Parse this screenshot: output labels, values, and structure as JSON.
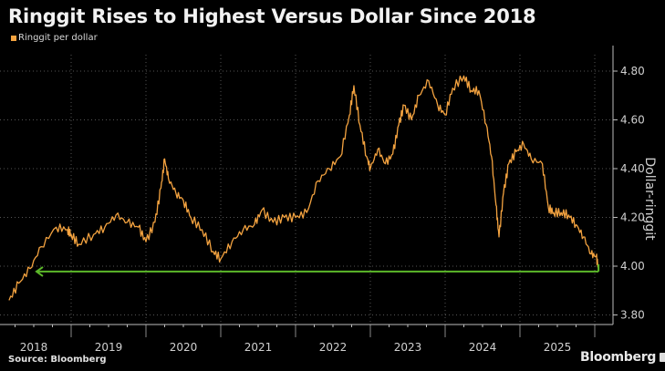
{
  "chart_data": {
    "type": "line",
    "title": "Ringgit Rises to Highest Versus Dollar Since 2018",
    "legend": [
      "Ringgit per dollar"
    ],
    "legend_placement": "top-left",
    "ylabel": "Dollar-ringgit",
    "xlabel": "",
    "ylim": [
      3.76,
      4.88
    ],
    "yticks": [
      "4.80",
      "4.60",
      "4.40",
      "4.20",
      "4.00",
      "3.80"
    ],
    "ytick_values": [
      4.8,
      4.6,
      4.4,
      4.2,
      4.0,
      3.8
    ],
    "xticks": [
      "2018",
      "2019",
      "2020",
      "2021",
      "2022",
      "2023",
      "2024",
      "2025"
    ],
    "grid": true,
    "series": [
      {
        "name": "Ringgit per dollar",
        "color": "#f4a340",
        "x": [
          2018.17,
          2018.3,
          2018.45,
          2018.6,
          2018.8,
          2018.95,
          2019.0,
          2019.1,
          2019.3,
          2019.45,
          2019.6,
          2019.75,
          2019.9,
          2020.0,
          2020.12,
          2020.2,
          2020.25,
          2020.3,
          2020.4,
          2020.5,
          2020.6,
          2020.75,
          2020.9,
          2021.0,
          2021.15,
          2021.3,
          2021.45,
          2021.55,
          2021.7,
          2021.85,
          2022.0,
          2022.15,
          2022.3,
          2022.45,
          2022.6,
          2022.72,
          2022.78,
          2022.86,
          2022.95,
          2023.0,
          2023.1,
          2023.2,
          2023.3,
          2023.38,
          2023.45,
          2023.55,
          2023.65,
          2023.78,
          2023.9,
          2024.0,
          2024.1,
          2024.25,
          2024.35,
          2024.45,
          2024.55,
          2024.62,
          2024.68,
          2024.72,
          2024.78,
          2024.85,
          2024.95,
          2025.05,
          2025.15,
          2025.3,
          2025.38,
          2025.45,
          2025.55,
          2025.65,
          2025.75,
          2025.85,
          2025.95,
          2026.02,
          2026.05
        ],
        "values": [
          3.86,
          3.93,
          3.99,
          4.08,
          4.16,
          4.15,
          4.13,
          4.09,
          4.13,
          4.16,
          4.21,
          4.18,
          4.16,
          4.1,
          4.18,
          4.32,
          4.44,
          4.36,
          4.3,
          4.27,
          4.2,
          4.15,
          4.06,
          4.03,
          4.1,
          4.15,
          4.17,
          4.23,
          4.18,
          4.2,
          4.2,
          4.22,
          4.35,
          4.4,
          4.45,
          4.62,
          4.74,
          4.58,
          4.45,
          4.4,
          4.48,
          4.42,
          4.46,
          4.58,
          4.66,
          4.6,
          4.7,
          4.76,
          4.66,
          4.62,
          4.73,
          4.78,
          4.72,
          4.72,
          4.58,
          4.45,
          4.25,
          4.12,
          4.3,
          4.42,
          4.47,
          4.5,
          4.44,
          4.42,
          4.24,
          4.22,
          4.22,
          4.21,
          4.17,
          4.12,
          4.05,
          4.04,
          3.99
        ]
      }
    ],
    "annotations": [
      {
        "type": "horizontal-arrow",
        "direction": "left",
        "value": 3.978,
        "color": "#5cb82a"
      }
    ]
  },
  "source": "Source: Bloomberg",
  "brand": "Bloomberg"
}
